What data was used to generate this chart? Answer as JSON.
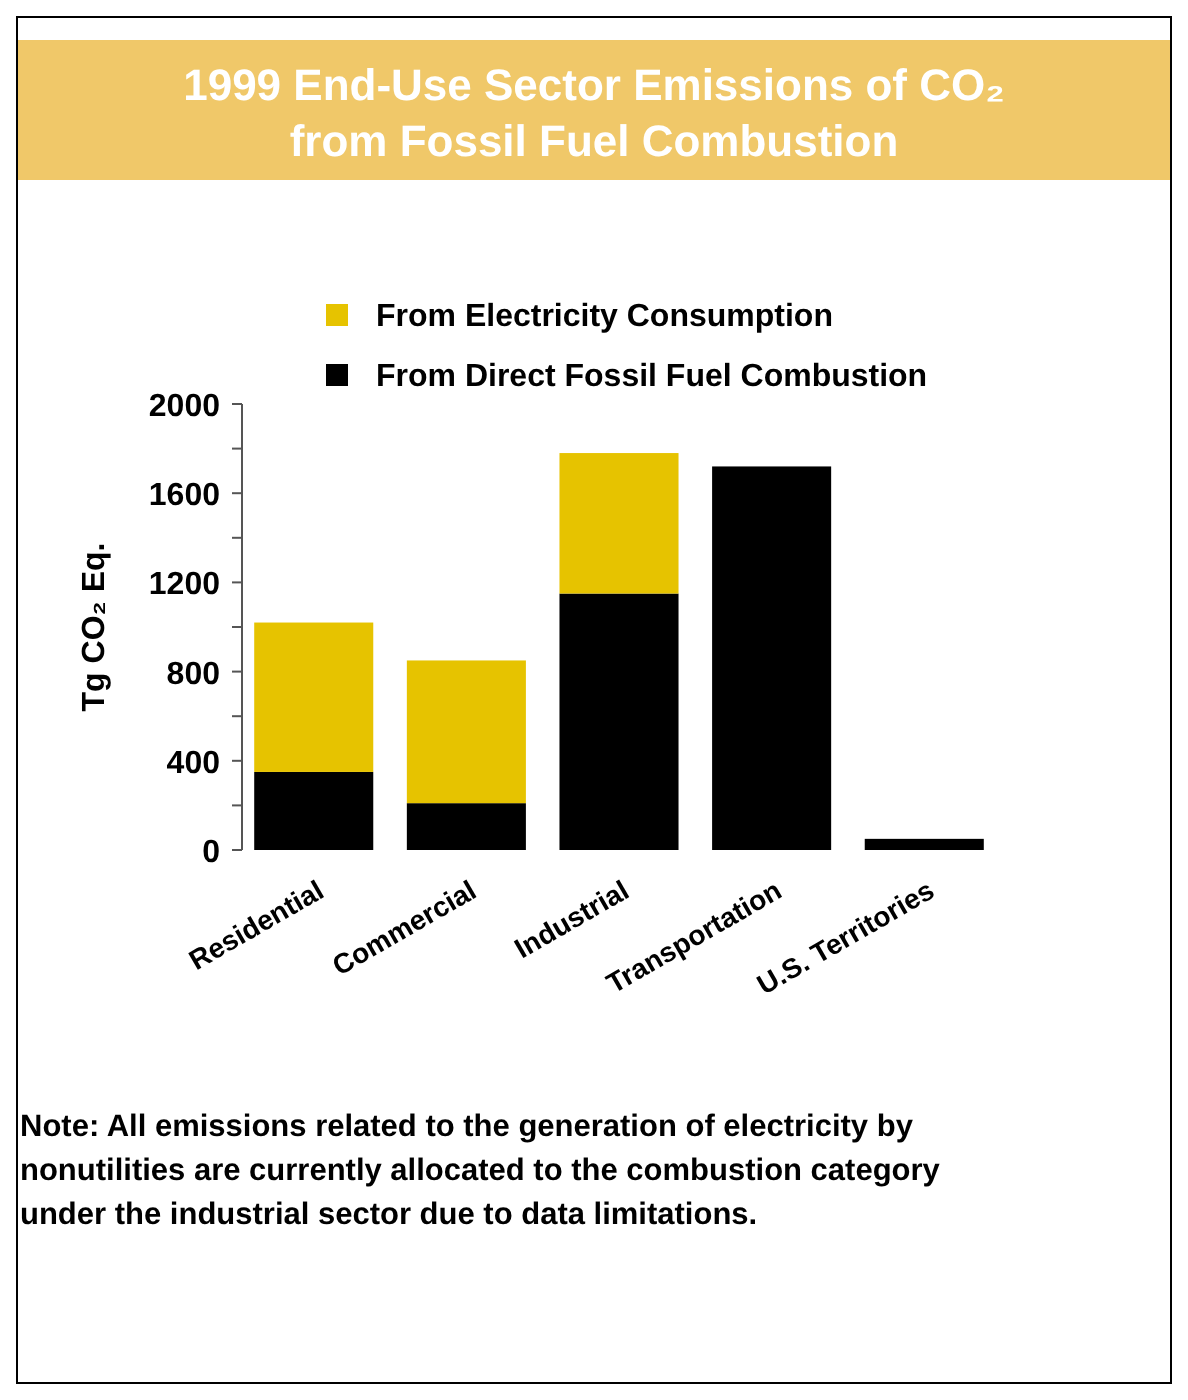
{
  "chart_data": {
    "type": "bar",
    "title": "1999 End-Use Sector Emissions of CO₂ from Fossil Fuel Combustion",
    "ylabel": "Tg CO₂ Eq.",
    "categories": [
      "Residential",
      "Commercial",
      "Industrial",
      "Transportation",
      "U.S. Territories"
    ],
    "series": [
      {
        "name": "From Direct Fossil Fuel Combustion",
        "color": "#000000",
        "values": [
          350,
          210,
          1150,
          1720,
          50
        ]
      },
      {
        "name": "From Electricity Consumption",
        "color": "#e6c300",
        "values": [
          670,
          640,
          630,
          0,
          0
        ]
      }
    ],
    "stacked": true,
    "ylim": [
      0,
      2000
    ],
    "yticks": [
      0,
      {
        "value": 200,
        "label": null
      },
      400,
      {
        "value": 600,
        "label": null
      },
      800,
      {
        "value": 1000,
        "label": null
      },
      1200,
      {
        "value": 1400,
        "label": null
      },
      1600,
      {
        "value": 1800,
        "label": null
      },
      2000
    ],
    "legend": "top",
    "annotations": [
      "Note: All emissions related to the generation of electricity by nonutilities are currently allocated to the combustion category under the industrial sector due to data limitations."
    ]
  }
}
